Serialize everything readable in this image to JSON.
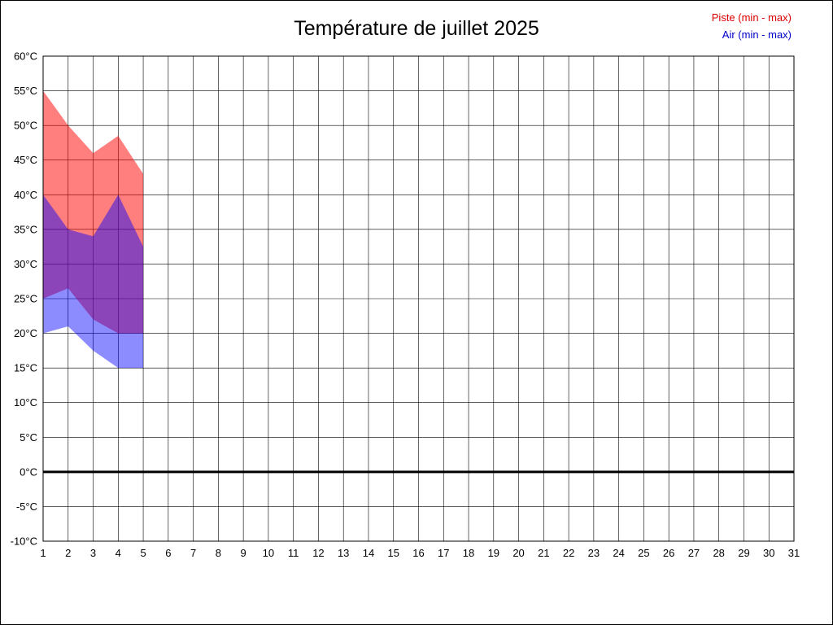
{
  "title": "Température de juillet 2025",
  "legend": {
    "piste": {
      "label": "Piste (min - max)",
      "color": "#dd0000"
    },
    "air": {
      "label": "Air (min - max)",
      "color": "#0000cc"
    }
  },
  "chart_data": {
    "type": "area",
    "title": "Température de juillet 2025",
    "subtitle": "",
    "x": [
      1,
      2,
      3,
      4,
      5
    ],
    "x_axis": {
      "min": 1,
      "max": 31,
      "ticks": [
        1,
        2,
        3,
        4,
        5,
        6,
        7,
        8,
        9,
        10,
        11,
        12,
        13,
        14,
        15,
        16,
        17,
        18,
        19,
        20,
        21,
        22,
        23,
        24,
        25,
        26,
        27,
        28,
        29,
        30,
        31
      ]
    },
    "y_axis": {
      "min": -10,
      "max": 60,
      "step": 5,
      "unit": "°C",
      "tick_labels": [
        "60°C",
        "55°C",
        "50°C",
        "45°C",
        "40°C",
        "35°C",
        "30°C",
        "25°C",
        "20°C",
        "15°C",
        "10°C",
        "5°C",
        "0°C",
        "-5°C",
        "-10°C"
      ]
    },
    "series": [
      {
        "name": "Piste max",
        "values": [
          55,
          50,
          46,
          48.5,
          43
        ]
      },
      {
        "name": "Piste min",
        "values": [
          25,
          26.5,
          22,
          20,
          20
        ]
      },
      {
        "name": "Air max",
        "values": [
          40,
          35,
          34,
          40,
          32.5
        ]
      },
      {
        "name": "Air min",
        "values": [
          20,
          21,
          17.5,
          15,
          15
        ]
      }
    ],
    "bands": [
      {
        "name": "piste",
        "max_series": 0,
        "min_series": 1,
        "color": "rgba(255,0,0,0.5)"
      },
      {
        "name": "air",
        "max_series": 2,
        "min_series": 3,
        "color": "rgba(0,0,255,0.45)"
      }
    ],
    "zero_line": 0,
    "grid": true,
    "grid_color": "#000000",
    "legend_position": "top-right",
    "legend_entries": [
      "Piste (min - max)",
      "Air (min - max)"
    ]
  }
}
